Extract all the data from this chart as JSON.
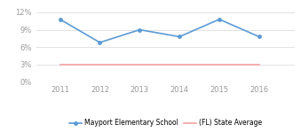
{
  "years": [
    2011,
    2012,
    2013,
    2014,
    2015,
    2016
  ],
  "school_values": [
    10.8,
    6.8,
    9.0,
    7.8,
    10.8,
    7.8
  ],
  "state_values": [
    3.0,
    3.0,
    3.0,
    3.0,
    3.0,
    3.0
  ],
  "school_color": "#5b9bd5",
  "state_color": "#f4a0a0",
  "ylim": [
    0,
    13
  ],
  "yticks": [
    0,
    3,
    6,
    9,
    12
  ],
  "ytick_labels": [
    "0%",
    "3%",
    "6%",
    "9%",
    "12%"
  ],
  "xlabel_fontsize": 6,
  "ylabel_fontsize": 6,
  "legend_school": "Mayport Elementary School",
  "legend_state": "(FL) State Average",
  "bg_color": "#ffffff",
  "grid_color": "#dddddd",
  "line_width": 1.2,
  "marker": "o",
  "marker_size": 2.5,
  "xlim_left": 2010.4,
  "xlim_right": 2016.9
}
